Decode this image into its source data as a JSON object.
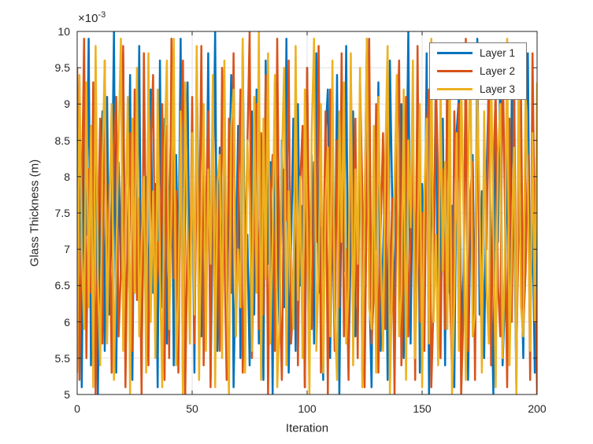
{
  "axes": {
    "exponent_base": "×10",
    "exponent_power": "-3",
    "xlabel": "Iteration",
    "ylabel": "Glass Thickness (m)",
    "axis_color": "#262626",
    "grid_color": "#e0e0e0",
    "grid_visible": true
  },
  "legend": {
    "position": "northeast",
    "border_color": "#7a7a7a",
    "items": [
      {
        "label": "Layer 1",
        "color": "#0072BD"
      },
      {
        "label": "Layer 2",
        "color": "#D95319"
      },
      {
        "label": "Layer 3",
        "color": "#EDB120"
      }
    ]
  },
  "chart_data": {
    "type": "line",
    "title": "",
    "xlabel": "Iteration",
    "ylabel": "Glass Thickness (m)",
    "xlim": [
      0,
      200
    ],
    "ylim_display": [
      5,
      10
    ],
    "y_scale_exponent": -3,
    "values_unit": "1e-3 m",
    "x_start": 0,
    "x_step": 1,
    "grid": true,
    "legend_position": "northeast",
    "xticks": [
      0,
      50,
      100,
      150,
      200
    ],
    "xtick_labels": [
      "0",
      "50",
      "100",
      "150",
      "200"
    ],
    "yticks": [
      5,
      5.5,
      6,
      6.5,
      7,
      7.5,
      8,
      8.5,
      9,
      9.5,
      10
    ],
    "ytick_labels": [
      "5",
      "5.5",
      "6",
      "6.5",
      "7",
      "7.5",
      "8",
      "8.5",
      "9",
      "9.5",
      "10"
    ],
    "series": [
      {
        "name": "Layer 1",
        "color": "#0072BD",
        "values": [
          6.3,
          9.3,
          5.1,
          8.7,
          7.2,
          9.9,
          5.4,
          6.8,
          9.5,
          5.0,
          7.7,
          8.9,
          5.6,
          9.1,
          6.1,
          7.4,
          10.0,
          5.3,
          8.2,
          6.6,
          9.7,
          5.8,
          7.0,
          9.4,
          5.2,
          8.5,
          6.9,
          9.8,
          5.5,
          7.6,
          8.0,
          5.9,
          9.2,
          6.4,
          7.9,
          5.1,
          9.6,
          6.2,
          8.8,
          5.7,
          7.3,
          9.0,
          5.4,
          8.3,
          6.7,
          9.9,
          5.0,
          7.8,
          9.3,
          6.0,
          8.6,
          5.3,
          9.5,
          7.1,
          5.8,
          8.1,
          6.5,
          9.7,
          5.2,
          7.5,
          10.0,
          5.6,
          8.4,
          6.3,
          9.1,
          5.9,
          7.7,
          9.4,
          5.1,
          6.9,
          8.7,
          5.5,
          9.8,
          6.6,
          7.2,
          5.4,
          8.9,
          6.1,
          9.2,
          5.7,
          7.9,
          5.2,
          9.6,
          6.8,
          8.2,
          5.0,
          9.3,
          7.4,
          5.8,
          8.5,
          6.2,
          9.9,
          5.3,
          7.0,
          8.8,
          5.6,
          9.0,
          6.5,
          7.6,
          5.1,
          9.5,
          6.0,
          8.3,
          5.7,
          9.7,
          6.4,
          7.3,
          5.2,
          8.6,
          9.2,
          5.5,
          7.8,
          6.1,
          9.4,
          5.0,
          8.0,
          6.7,
          9.8,
          5.4,
          7.1,
          8.9,
          5.8,
          6.3,
          9.1,
          5.3,
          7.5,
          9.9,
          6.6,
          5.1,
          8.4,
          7.0,
          9.3,
          5.6,
          6.9,
          8.1,
          5.2,
          9.6,
          7.7,
          5.9,
          8.7,
          6.2,
          9.0,
          5.5,
          7.4,
          10.0,
          5.7,
          8.5,
          6.0,
          9.2,
          5.3,
          7.9,
          6.5,
          9.7,
          5.0,
          8.2,
          6.8,
          9.4,
          5.6,
          7.2,
          8.8,
          5.4,
          9.8,
          6.4,
          7.6,
          5.1,
          8.6,
          9.1,
          5.8,
          6.7,
          9.5,
          5.2,
          7.3,
          8.3,
          5.9,
          9.9,
          6.1,
          7.8,
          5.5,
          8.0,
          9.3,
          6.6,
          5.0,
          8.9,
          7.1,
          9.6,
          5.4,
          6.3,
          8.4,
          5.7,
          9.2,
          7.5,
          5.1,
          9.0,
          6.9,
          5.5,
          8.7,
          9.7,
          6.0,
          7.4,
          5.3,
          8.1
        ]
      },
      {
        "name": "Layer 2",
        "color": "#D95319",
        "values": [
          9.5,
          5.2,
          7.6,
          9.9,
          5.5,
          8.1,
          6.4,
          9.3,
          5.0,
          7.2,
          8.8,
          5.7,
          9.6,
          6.1,
          7.9,
          5.3,
          8.4,
          9.1,
          5.8,
          6.7,
          9.8,
          5.1,
          7.4,
          8.6,
          5.6,
          9.2,
          6.3,
          7.7,
          5.0,
          9.7,
          6.8,
          5.4,
          8.3,
          9.4,
          5.9,
          7.1,
          6.5,
          9.0,
          5.2,
          8.7,
          5.5,
          9.9,
          6.6,
          7.8,
          5.3,
          8.5,
          9.6,
          5.0,
          7.3,
          6.2,
          9.1,
          5.7,
          8.2,
          6.9,
          9.8,
          5.4,
          7.5,
          8.9,
          5.1,
          9.3,
          6.0,
          8.0,
          5.6,
          9.5,
          7.0,
          5.2,
          8.8,
          6.4,
          9.7,
          5.8,
          7.6,
          9.2,
          5.3,
          6.7,
          8.4,
          10.0,
          5.5,
          7.2,
          9.0,
          5.9,
          8.6,
          6.1,
          9.4,
          5.0,
          7.7,
          8.3,
          5.6,
          9.9,
          6.5,
          5.2,
          8.1,
          7.4,
          9.6,
          5.7,
          6.3,
          9.1,
          5.4,
          7.9,
          8.7,
          5.1,
          9.5,
          6.8,
          5.9,
          8.2,
          7.1,
          9.8,
          5.3,
          6.6,
          8.9,
          5.0,
          9.2,
          7.5,
          5.6,
          8.5,
          6.2,
          9.7,
          5.8,
          7.0,
          5.2,
          9.4,
          6.9,
          8.8,
          5.5,
          9.3,
          7.8,
          5.1,
          8.0,
          9.9,
          5.7,
          6.4,
          9.0,
          5.3,
          7.3,
          8.6,
          5.9,
          9.5,
          6.1,
          7.7,
          5.0,
          8.3,
          9.6,
          5.4,
          6.7,
          9.1,
          5.8,
          7.2,
          8.4,
          5.2,
          9.8,
          6.0,
          7.5,
          5.6,
          8.7,
          9.2,
          5.1,
          6.3,
          9.4,
          7.9,
          5.5,
          8.1,
          5.9,
          9.7,
          6.6,
          5.3,
          8.9,
          7.4,
          9.0,
          5.0,
          6.2,
          9.9,
          5.6,
          7.8,
          8.2,
          5.2,
          9.3,
          6.8,
          5.7,
          8.5,
          7.0,
          9.6,
          5.4,
          8.0,
          9.2,
          6.5,
          5.8,
          9.8,
          7.6,
          5.1,
          8.8,
          6.0,
          9.5,
          5.5,
          7.3,
          9.1,
          5.9,
          6.7,
          8.3,
          5.2,
          9.7,
          7.1,
          5.0
        ]
      },
      {
        "name": "Layer 3",
        "color": "#EDB120",
        "values": [
          5.3,
          9.4,
          7.0,
          5.9,
          9.3,
          6.2,
          8.7,
          5.1,
          9.8,
          6.6,
          5.4,
          8.2,
          9.6,
          5.7,
          7.5,
          9.0,
          5.2,
          6.9,
          8.5,
          9.9,
          5.6,
          7.3,
          9.1,
          5.0,
          8.8,
          6.4,
          9.5,
          5.8,
          7.1,
          8.0,
          5.3,
          9.7,
          6.0,
          7.8,
          5.5,
          9.2,
          6.7,
          5.1,
          8.4,
          9.6,
          5.9,
          7.6,
          9.9,
          5.4,
          6.3,
          8.9,
          5.0,
          9.3,
          7.2,
          5.7,
          8.6,
          6.1,
          9.8,
          5.2,
          7.4,
          9.0,
          5.6,
          8.1,
          6.8,
          9.4,
          5.1,
          7.9,
          8.3,
          5.5,
          9.6,
          6.5,
          5.0,
          8.7,
          9.2,
          5.8,
          7.0,
          6.2,
          9.9,
          5.3,
          8.5,
          7.7,
          5.6,
          9.1,
          6.4,
          10.0,
          5.2,
          8.8,
          6.6,
          9.7,
          5.7,
          7.2,
          9.4,
          5.1,
          6.0,
          8.2,
          9.5,
          5.4,
          7.8,
          6.9,
          5.9,
          9.8,
          6.3,
          8.0,
          5.5,
          9.2,
          7.4,
          5.0,
          8.6,
          9.9,
          5.6,
          6.7,
          9.0,
          5.3,
          7.7,
          8.4,
          5.8,
          9.6,
          6.1,
          5.2,
          8.9,
          7.1,
          9.3,
          5.7,
          6.5,
          9.7,
          5.4,
          8.1,
          6.8,
          9.5,
          5.1,
          7.6,
          9.9,
          6.2,
          5.9,
          8.7,
          5.3,
          9.1,
          7.0,
          5.6,
          8.3,
          9.8,
          5.0,
          6.6,
          7.9,
          9.4,
          5.8,
          6.4,
          9.2,
          5.2,
          8.5,
          7.3,
          9.6,
          5.5,
          6.9,
          9.0,
          5.1,
          7.8,
          8.8,
          5.7,
          9.9,
          6.0,
          7.2,
          5.4,
          9.3,
          6.7,
          8.2,
          5.9,
          9.7,
          5.0,
          6.3,
          8.6,
          5.6,
          9.4,
          7.5,
          5.2,
          8.0,
          9.8,
          5.8,
          6.1,
          9.1,
          7.7,
          5.3,
          8.9,
          6.5,
          5.7,
          9.5,
          7.4,
          5.1,
          8.3,
          9.0,
          5.5,
          6.8,
          9.9,
          5.4,
          7.1,
          8.4,
          5.0,
          9.6,
          6.2,
          5.8,
          9.2,
          7.9,
          5.6,
          8.6,
          6.0,
          9.3
        ]
      }
    ]
  }
}
